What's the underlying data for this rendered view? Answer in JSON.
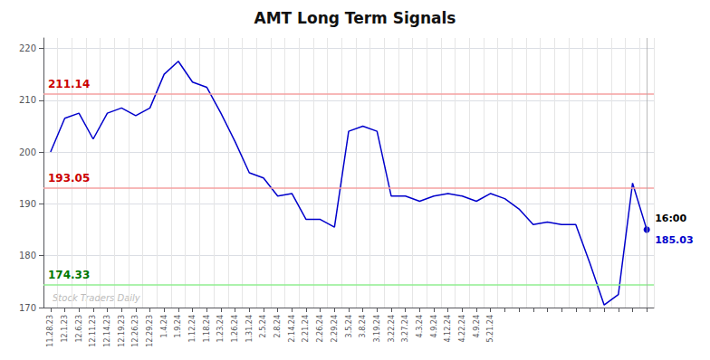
{
  "chart_data": {
    "type": "line",
    "title": "AMT Long Term Signals",
    "categories": [
      "11.28.23",
      "12.1.23",
      "12.6.23",
      "12.11.23",
      "12.14.23",
      "12.19.23",
      "12.26.23",
      "12.29.23",
      "1.4.24",
      "1.9.24",
      "1.12.24",
      "1.18.24",
      "1.23.24",
      "1.26.24",
      "1.31.24",
      "2.5.24",
      "2.8.24",
      "2.14.24",
      "2.21.24",
      "2.26.24",
      "2.29.24",
      "3.5.24",
      "3.8.24",
      "3.19.24",
      "3.22.24",
      "3.27.24",
      "4.3.24",
      "4.9.24",
      "4.12.24",
      "4.22.24",
      "4.9.24",
      "5.21.24",
      null,
      null,
      null,
      null,
      null,
      null,
      null,
      null,
      null,
      null,
      null
    ],
    "values": [
      200.0,
      206.5,
      207.5,
      202.5,
      207.5,
      208.5,
      207.0,
      208.5,
      215.0,
      217.5,
      213.5,
      212.5,
      207.5,
      202.0,
      196.0,
      195.0,
      191.5,
      192.0,
      187.0,
      187.0,
      185.5,
      204.0,
      205.0,
      204.0,
      191.5,
      191.5,
      190.5,
      191.5,
      192.0,
      191.5,
      190.5,
      192.0,
      191.0,
      189.0,
      186.0,
      186.5,
      186.0,
      186.0,
      178.5,
      170.5,
      172.5,
      194.0,
      185.03
    ],
    "color": "#0000cc",
    "ylim": [
      170,
      222
    ],
    "yticks": [
      170,
      180,
      190,
      200,
      210,
      220
    ],
    "grid": true,
    "hlines": [
      {
        "value": 211.14,
        "color": "#f5a0a0",
        "label_color": "#cc0000"
      },
      {
        "value": 193.05,
        "color": "#f5a0a0",
        "label_color": "#cc0000"
      },
      {
        "value": 174.33,
        "color": "#90ee90",
        "label_color": "#007700"
      }
    ],
    "last_time": "16:00",
    "last_price": 185.03,
    "watermark": "Stock Traders Daily"
  }
}
